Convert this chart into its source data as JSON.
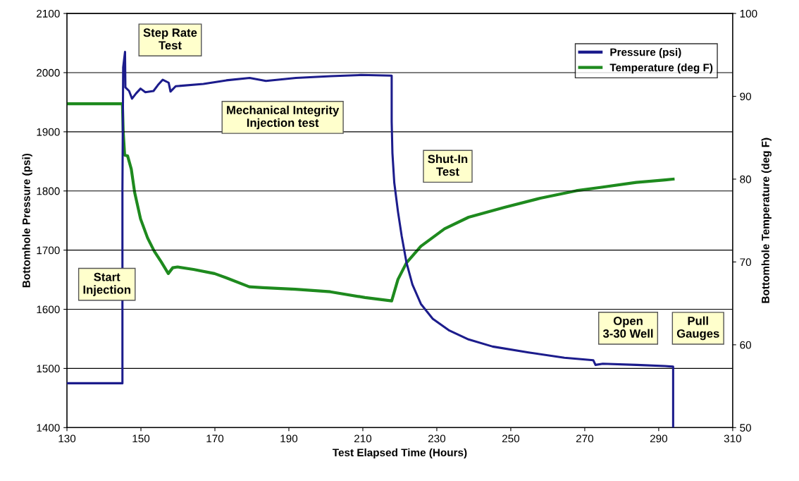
{
  "chart_data": {
    "type": "line",
    "xlabel": "Test Elapsed Time (Hours)",
    "ylabel": "Bottomhole Pressure (psi)",
    "y2label": "Bottomhole Temperature (deg F)",
    "xlim": [
      130,
      310
    ],
    "xticks": [
      130,
      150,
      170,
      190,
      210,
      230,
      250,
      270,
      290,
      310
    ],
    "ylim": [
      1400,
      2100
    ],
    "yticks": [
      1400,
      1500,
      1600,
      1700,
      1800,
      1900,
      2000,
      2100
    ],
    "y2lim": [
      50,
      100
    ],
    "y2ticks": [
      50,
      60,
      70,
      80,
      90,
      100
    ],
    "grid": "y",
    "legend": "top right",
    "marker": "none",
    "line_style": "solid",
    "series": [
      {
        "name": "Pressure (psi)",
        "color": "#1c1c8c",
        "x": [
          130,
          145.0,
          145.0,
          145.2,
          145.7,
          145.8,
          146.8,
          147.6,
          148.7,
          149.9,
          151.2,
          153.4,
          154.6,
          155.9,
          157.5,
          158.0,
          159.4,
          166.9,
          173.1,
          179.4,
          183.8,
          191.9,
          201.3,
          209.5,
          217.8,
          217.8,
          218.0,
          218.5,
          219.5,
          220.5,
          221.8,
          223.4,
          225.7,
          228.9,
          233.4,
          238.6,
          245.1,
          254.8,
          264.5,
          272.3,
          272.9,
          274.9,
          284.0,
          291.7,
          293.9,
          293.9
        ],
        "values": [
          1475,
          1475,
          1802,
          2009,
          2035,
          1975,
          1969,
          1956,
          1965,
          1973,
          1967,
          1969,
          1979,
          1988,
          1983,
          1968,
          1977,
          1981,
          1987,
          1991,
          1986,
          1991,
          1994,
          1996,
          1995,
          1917,
          1864,
          1814,
          1765,
          1724,
          1679,
          1642,
          1609,
          1584,
          1564,
          1549,
          1537,
          1527,
          1518,
          1514,
          1506,
          1508,
          1506,
          1504,
          1503,
          1400
        ]
      },
      {
        "name": "Temperature (deg F)",
        "color": "#1e8a1e",
        "axis": "y2",
        "x": [
          130,
          145.0,
          145.2,
          145.6,
          146.4,
          147.4,
          148.3,
          149.9,
          151.8,
          153.6,
          155.5,
          157.4,
          158.6,
          159.9,
          164.2,
          169.9,
          173.0,
          179.3,
          183.0,
          191.8,
          201.2,
          210.6,
          217.8,
          219.5,
          221.8,
          225.7,
          232.1,
          238.6,
          248.3,
          258.0,
          267.7,
          274.2,
          283.9,
          291.7,
          293.9
        ],
        "values": [
          89.1,
          89.1,
          85.8,
          82.9,
          82.8,
          81.2,
          78.4,
          75.2,
          72.9,
          71.3,
          70.0,
          68.6,
          69.3,
          69.4,
          69.1,
          68.6,
          68.1,
          67.0,
          66.9,
          66.7,
          66.4,
          65.7,
          65.3,
          67.9,
          69.9,
          71.9,
          74.0,
          75.4,
          76.6,
          77.7,
          78.6,
          79.0,
          79.6,
          79.9,
          80.0
        ]
      }
    ],
    "annotations": [
      "Step Rate\nTest",
      "Start\nInjection",
      "Mechanical Integrity\nInjection test",
      "Shut-In\nTest",
      "Open\n3-30 Well",
      "Pull\nGauges"
    ]
  }
}
